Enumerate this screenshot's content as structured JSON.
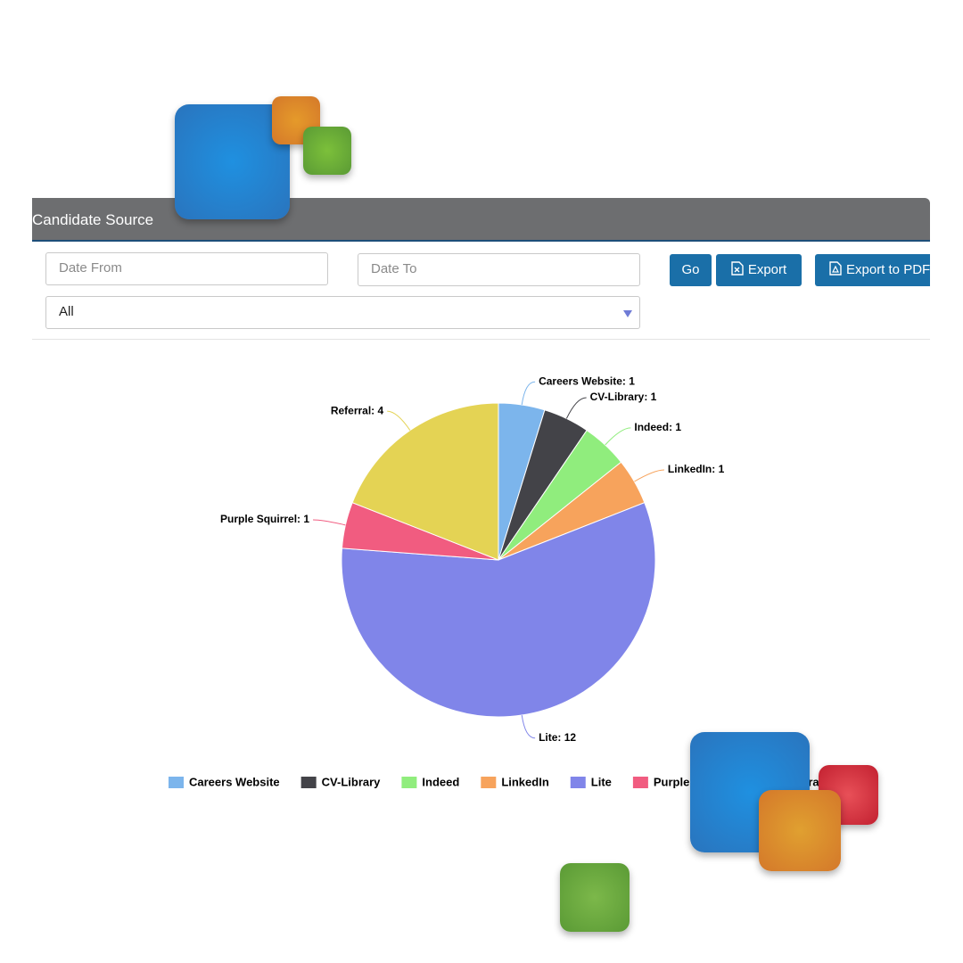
{
  "panel": {
    "title": "Candidate Source"
  },
  "filters": {
    "date_from": "Date From",
    "date_to": "Date To",
    "source": "All"
  },
  "buttons": {
    "go": "Go",
    "export": "Export",
    "export_pdf": "Export to PDF"
  },
  "chart_data": {
    "type": "pie",
    "categories": [
      "Careers Website",
      "CV-Library",
      "Indeed",
      "LinkedIn",
      "Lite",
      "Purple Squirrel",
      "Referral"
    ],
    "values": [
      1,
      1,
      1,
      1,
      12,
      1,
      4
    ],
    "value_labels": [
      "Careers Website: 1",
      "CV-Library: 1",
      "Indeed: 1",
      "LinkedIn: 1",
      "Lite: 12",
      "Purple Squirrel: 1",
      "Referral: 4"
    ],
    "colors": [
      "#7cb5ec",
      "#434348",
      "#90ed7d",
      "#f7a35c",
      "#8085e9",
      "#f15c80",
      "#e4d354"
    ],
    "legend": "bottom"
  }
}
